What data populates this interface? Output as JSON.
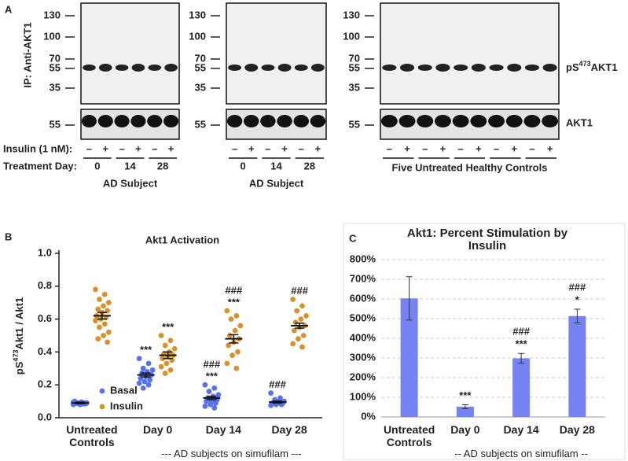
{
  "blot": {
    "panel_label": "A",
    "ip_label": "IP: Anti-AKT1",
    "insulin_label": "Insulin (1 nM):",
    "day_label": "Treatment Day:",
    "phospho_label": {
      "base": "pS",
      "sup": "473",
      "rest": "AKT1"
    },
    "total_label": "AKT1",
    "panels": [
      {
        "markers": [
          130,
          100,
          70,
          55,
          35
        ],
        "lower_marker": 55,
        "insulin": [
          "–",
          "+",
          "–",
          "+",
          "–",
          "+"
        ],
        "days": [
          0,
          14,
          28
        ],
        "group": "AD Subject"
      },
      {
        "markers": [
          130,
          100,
          70,
          55,
          35
        ],
        "lower_marker": 55,
        "insulin": [
          "–",
          "+",
          "–",
          "+",
          "–",
          "+"
        ],
        "days": [
          0,
          14,
          28
        ],
        "group": "AD Subject"
      },
      {
        "markers": [
          130,
          100,
          70,
          55,
          35
        ],
        "lower_marker": 55,
        "insulin": [
          "–",
          "+",
          "–",
          "+",
          "–",
          "+",
          "–",
          "+",
          "–",
          "+"
        ],
        "group": "Five Untreated Healthy Controls"
      }
    ]
  },
  "chart_data": [
    {
      "type": "strip",
      "panel_label": "B",
      "title": "Akt1 Activation",
      "y_label": {
        "base": "pS",
        "sup": "473",
        "rest": "Akt1 / Akt1"
      },
      "categories": [
        "Untreated Controls",
        "Day 0",
        "Day 14",
        "Day 28"
      ],
      "group_label": "--- AD subjects on simufilam ---",
      "series": [
        {
          "name": "Basal",
          "color": "#5571f0",
          "values": [
            [
              0.08,
              0.085,
              0.09,
              0.09,
              0.095,
              0.09,
              0.085,
              0.08,
              0.1,
              0.09,
              0.085,
              0.095,
              0.09,
              0.088
            ],
            [
              0.36,
              0.33,
              0.3,
              0.29,
              0.28,
              0.27,
              0.26,
              0.25,
              0.24,
              0.23,
              0.22,
              0.21,
              0.2,
              0.18
            ],
            [
              0.2,
              0.18,
              0.16,
              0.14,
              0.13,
              0.12,
              0.11,
              0.1,
              0.1,
              0.09,
              0.08,
              0.07,
              0.06
            ],
            [
              0.15,
              0.12,
              0.11,
              0.1,
              0.1,
              0.095,
              0.09,
              0.09,
              0.085,
              0.08,
              0.08,
              0.075
            ]
          ],
          "mean": [
            0.09,
            0.26,
            0.12,
            0.095
          ],
          "sem": [
            0.005,
            0.012,
            0.01,
            0.006
          ],
          "labels": [
            [],
            [
              "***"
            ],
            [
              "###",
              "***"
            ],
            [
              "###"
            ]
          ]
        },
        {
          "name": "Insulin",
          "color": "#d9912a",
          "values": [
            [
              0.78,
              0.75,
              0.72,
              0.7,
              0.68,
              0.66,
              0.65,
              0.64,
              0.62,
              0.61,
              0.6,
              0.59,
              0.57,
              0.55,
              0.52,
              0.5,
              0.48,
              0.46
            ],
            [
              0.5,
              0.47,
              0.44,
              0.42,
              0.4,
              0.39,
              0.38,
              0.37,
              0.36,
              0.35,
              0.33,
              0.31,
              0.29,
              0.27
            ],
            [
              0.65,
              0.62,
              0.6,
              0.56,
              0.53,
              0.5,
              0.48,
              0.46,
              0.44,
              0.4,
              0.38,
              0.33,
              0.3
            ],
            [
              0.72,
              0.68,
              0.65,
              0.62,
              0.6,
              0.58,
              0.56,
              0.55,
              0.53,
              0.5,
              0.48,
              0.45,
              0.43
            ]
          ],
          "mean": [
            0.62,
            0.38,
            0.48,
            0.56
          ],
          "sem": [
            0.02,
            0.02,
            0.025,
            0.015
          ],
          "labels": [
            [],
            [
              "***"
            ],
            [
              "###",
              "***"
            ],
            [
              "###"
            ]
          ]
        }
      ],
      "ylim": [
        0,
        1
      ],
      "yticks": [
        {
          "value": 0,
          "label": "0.0"
        },
        0.2,
        0.4,
        0.6,
        0.8,
        {
          "value": 1,
          "label": "1.0"
        }
      ],
      "legend": "lower left"
    },
    {
      "type": "bar",
      "panel_label": "C",
      "title": "Akt1: Percent Stimulation by Insulin",
      "categories": [
        "Untreated Controls",
        "Day 0",
        "Day 14",
        "Day 28"
      ],
      "group_label": "-- AD subjects on simufilam --",
      "values": [
        603,
        52,
        298,
        513
      ],
      "errors": [
        110,
        10,
        25,
        35
      ],
      "color": "#7482f2",
      "labels": [
        [],
        [
          "***"
        ],
        [
          "###",
          "***"
        ],
        [
          "###",
          "*"
        ]
      ],
      "ylim": [
        0,
        800
      ],
      "yticks": [
        {
          "value": 0,
          "label": "0%"
        },
        {
          "value": 100,
          "label": "100%"
        },
        {
          "value": 200,
          "label": "200%"
        },
        {
          "value": 300,
          "label": "300%"
        },
        {
          "value": 400,
          "label": "400%"
        },
        {
          "value": 500,
          "label": "500%"
        },
        {
          "value": 600,
          "label": "600%"
        },
        {
          "value": 700,
          "label": "700%"
        },
        {
          "value": 800,
          "label": "800%"
        }
      ],
      "grid": true
    }
  ]
}
